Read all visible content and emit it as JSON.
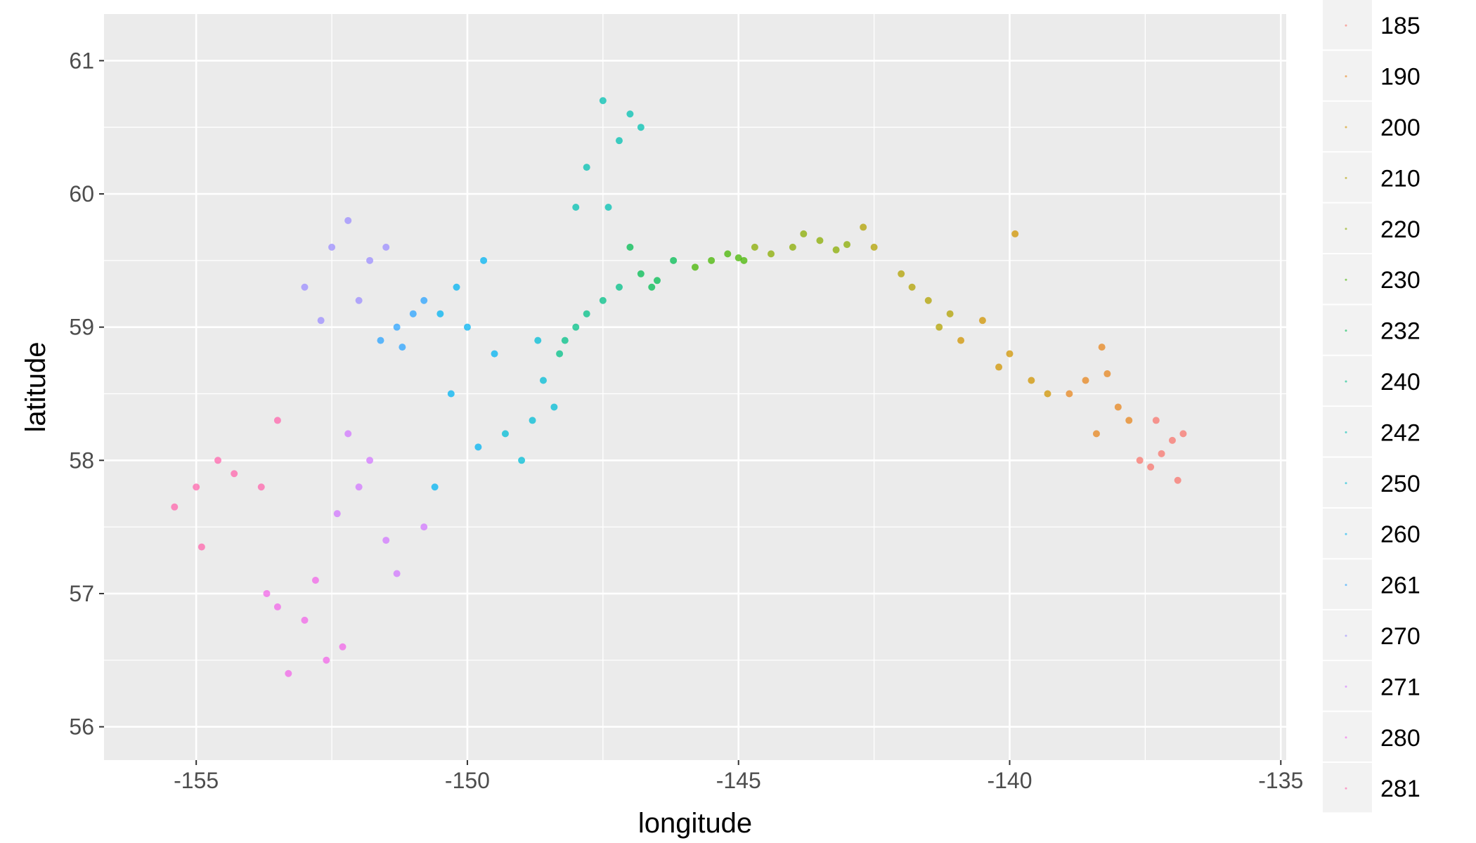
{
  "chart_data": {
    "type": "scatter",
    "title": "",
    "xlabel": "longitude",
    "ylabel": "latitude",
    "xlim": [
      -156.7,
      -134.9
    ],
    "ylim": [
      55.75,
      61.35
    ],
    "x_ticks": [
      -155,
      -150,
      -145,
      -140,
      -135
    ],
    "x_tick_labels": [
      "-155",
      "-150",
      "-145",
      "-140",
      "-135"
    ],
    "y_ticks": [
      56,
      57,
      58,
      59,
      60,
      61
    ],
    "y_tick_labels": [
      "56",
      "57",
      "58",
      "59",
      "60",
      "61"
    ],
    "grid": true,
    "legend_position": "right",
    "legend": [
      "185",
      "190",
      "200",
      "210",
      "220",
      "230",
      "232",
      "240",
      "242",
      "250",
      "260",
      "261",
      "270",
      "271",
      "280",
      "281"
    ],
    "series": [
      {
        "name": "185",
        "color": "#F8766D",
        "points": [
          [
            -137.0,
            58.15
          ],
          [
            -137.4,
            57.95
          ],
          [
            -136.8,
            58.2
          ],
          [
            -137.2,
            58.05
          ],
          [
            -137.6,
            58.0
          ],
          [
            -136.9,
            57.85
          ],
          [
            -137.3,
            58.3
          ]
        ]
      },
      {
        "name": "190",
        "color": "#E7851E",
        "points": [
          [
            -138.6,
            58.6
          ],
          [
            -138.0,
            58.4
          ],
          [
            -138.4,
            58.2
          ],
          [
            -138.3,
            58.85
          ],
          [
            -137.8,
            58.3
          ],
          [
            -138.9,
            58.5
          ],
          [
            -138.2,
            58.65
          ]
        ]
      },
      {
        "name": "200",
        "color": "#D09400",
        "points": [
          [
            -140.5,
            59.05
          ],
          [
            -140.0,
            58.8
          ],
          [
            -139.6,
            58.6
          ],
          [
            -140.9,
            58.9
          ],
          [
            -140.2,
            58.7
          ],
          [
            -139.3,
            58.5
          ],
          [
            -139.9,
            59.7
          ]
        ]
      },
      {
        "name": "210",
        "color": "#B2A100",
        "points": [
          [
            -142.0,
            59.4
          ],
          [
            -141.5,
            59.2
          ],
          [
            -141.1,
            59.1
          ],
          [
            -142.5,
            59.6
          ],
          [
            -141.8,
            59.3
          ],
          [
            -141.3,
            59.0
          ],
          [
            -142.7,
            59.75
          ]
        ]
      },
      {
        "name": "220",
        "color": "#89AC00",
        "points": [
          [
            -144.0,
            59.6
          ],
          [
            -143.5,
            59.65
          ],
          [
            -143.0,
            59.62
          ],
          [
            -144.4,
            59.55
          ],
          [
            -143.8,
            59.7
          ],
          [
            -143.2,
            59.58
          ],
          [
            -144.7,
            59.6
          ]
        ]
      },
      {
        "name": "230",
        "color": "#45B500",
        "points": [
          [
            -145.5,
            59.5
          ],
          [
            -145.0,
            59.52
          ],
          [
            -145.8,
            59.45
          ],
          [
            -145.2,
            59.55
          ],
          [
            -144.9,
            59.5
          ]
        ]
      },
      {
        "name": "232",
        "color": "#00BC51",
        "points": [
          [
            -146.5,
            59.35
          ],
          [
            -146.8,
            59.4
          ],
          [
            -146.2,
            59.5
          ],
          [
            -146.6,
            59.3
          ],
          [
            -147.0,
            59.6
          ]
        ]
      },
      {
        "name": "240",
        "color": "#00C087",
        "points": [
          [
            -147.5,
            59.2
          ],
          [
            -148.0,
            59.0
          ],
          [
            -147.2,
            59.3
          ],
          [
            -148.2,
            58.9
          ],
          [
            -147.8,
            59.1
          ],
          [
            -148.3,
            58.8
          ]
        ]
      },
      {
        "name": "242",
        "color": "#00C0B2",
        "points": [
          [
            -147.5,
            60.7
          ],
          [
            -147.2,
            60.4
          ],
          [
            -147.8,
            60.2
          ],
          [
            -147.0,
            60.6
          ],
          [
            -148.0,
            59.9
          ],
          [
            -146.8,
            60.5
          ],
          [
            -147.4,
            59.9
          ]
        ]
      },
      {
        "name": "250",
        "color": "#00BCD6",
        "points": [
          [
            -148.6,
            58.6
          ],
          [
            -148.8,
            58.3
          ],
          [
            -149.0,
            58.0
          ],
          [
            -148.4,
            58.4
          ],
          [
            -149.3,
            58.2
          ],
          [
            -148.7,
            58.9
          ]
        ]
      },
      {
        "name": "260",
        "color": "#00B3F2",
        "points": [
          [
            -150.0,
            59.0
          ],
          [
            -150.5,
            59.1
          ],
          [
            -149.5,
            58.8
          ],
          [
            -150.3,
            58.5
          ],
          [
            -149.8,
            58.1
          ],
          [
            -150.6,
            57.8
          ],
          [
            -149.7,
            59.5
          ],
          [
            -150.2,
            59.3
          ]
        ]
      },
      {
        "name": "261",
        "color": "#29A3FF",
        "points": [
          [
            -151.3,
            59.0
          ],
          [
            -151.6,
            58.9
          ],
          [
            -151.0,
            59.1
          ],
          [
            -150.8,
            59.2
          ],
          [
            -151.2,
            58.85
          ]
        ]
      },
      {
        "name": "270",
        "color": "#9C8DFF",
        "points": [
          [
            -152.2,
            59.8
          ],
          [
            -152.5,
            59.6
          ],
          [
            -151.8,
            59.5
          ],
          [
            -153.0,
            59.3
          ],
          [
            -152.0,
            59.2
          ],
          [
            -152.7,
            59.05
          ],
          [
            -151.5,
            59.6
          ]
        ]
      },
      {
        "name": "271",
        "color": "#D277FF",
        "points": [
          [
            -152.2,
            58.2
          ],
          [
            -152.0,
            57.8
          ],
          [
            -151.5,
            57.4
          ],
          [
            -152.4,
            57.6
          ],
          [
            -151.8,
            58.0
          ],
          [
            -150.8,
            57.5
          ],
          [
            -151.3,
            57.15
          ]
        ]
      },
      {
        "name": "280",
        "color": "#F166E8",
        "points": [
          [
            -153.0,
            56.8
          ],
          [
            -152.6,
            56.5
          ],
          [
            -153.3,
            56.4
          ],
          [
            -152.3,
            56.6
          ],
          [
            -153.5,
            56.9
          ],
          [
            -152.8,
            57.1
          ],
          [
            -153.7,
            57.0
          ]
        ]
      },
      {
        "name": "281",
        "color": "#FF65AC",
        "points": [
          [
            -155.0,
            57.8
          ],
          [
            -154.3,
            57.9
          ],
          [
            -155.4,
            57.65
          ],
          [
            -153.8,
            57.8
          ],
          [
            -154.6,
            58.0
          ],
          [
            -153.5,
            58.3
          ],
          [
            -154.9,
            57.35
          ]
        ]
      }
    ]
  }
}
